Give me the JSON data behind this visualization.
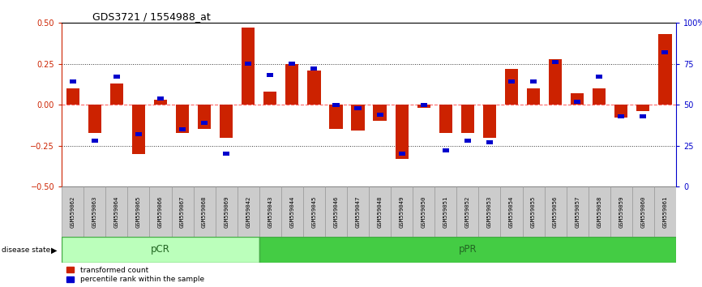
{
  "title": "GDS3721 / 1554988_at",
  "samples": [
    "GSM559062",
    "GSM559063",
    "GSM559064",
    "GSM559065",
    "GSM559066",
    "GSM559067",
    "GSM559068",
    "GSM559069",
    "GSM559042",
    "GSM559043",
    "GSM559044",
    "GSM559045",
    "GSM559046",
    "GSM559047",
    "GSM559048",
    "GSM559049",
    "GSM559050",
    "GSM559051",
    "GSM559052",
    "GSM559053",
    "GSM559054",
    "GSM559055",
    "GSM559056",
    "GSM559057",
    "GSM559058",
    "GSM559059",
    "GSM559060",
    "GSM559061"
  ],
  "transformed_count": [
    0.1,
    -0.17,
    0.13,
    -0.3,
    0.03,
    -0.17,
    -0.15,
    -0.2,
    0.47,
    0.08,
    0.25,
    0.21,
    -0.15,
    -0.16,
    -0.1,
    -0.33,
    -0.02,
    -0.17,
    -0.17,
    -0.2,
    0.22,
    0.1,
    0.28,
    0.07,
    0.1,
    -0.08,
    -0.04,
    0.43
  ],
  "percentile_rank": [
    64,
    28,
    67,
    32,
    54,
    35,
    39,
    20,
    75,
    68,
    75,
    72,
    50,
    48,
    44,
    20,
    50,
    22,
    28,
    27,
    64,
    64,
    76,
    52,
    67,
    43,
    43,
    82
  ],
  "pcr_count": 9,
  "ppr_count": 19,
  "bar_color_red": "#CC2200",
  "bar_color_blue": "#0000CC",
  "zero_line_color": "#FF6666",
  "dotted_line_color": "#333333",
  "ylim": [
    -0.5,
    0.5
  ],
  "y2lim": [
    0,
    100
  ],
  "yticks": [
    -0.5,
    -0.25,
    0,
    0.25,
    0.5
  ],
  "y2ticks": [
    0,
    25,
    50,
    75,
    100
  ],
  "ylabel_color_left": "#CC2200",
  "ylabel_color_right": "#0000CC",
  "pcr_color_light": "#BBFFBB",
  "pcr_color_dark": "#55CC55",
  "ppr_color": "#44CC44"
}
